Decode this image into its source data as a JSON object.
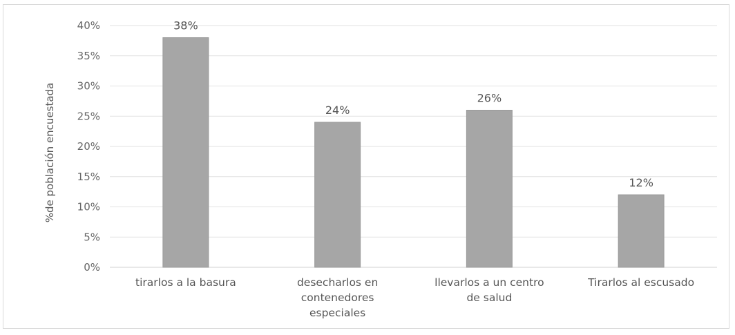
{
  "chart_data": {
    "type": "bar",
    "categories": [
      [
        "tirarlos a la basura"
      ],
      [
        "desecharlos en",
        "contenedores",
        "especiales"
      ],
      [
        "llevarlos a un centro",
        "de salud"
      ],
      [
        "Tirarlos al escusado"
      ]
    ],
    "values": [
      38,
      24,
      26,
      12
    ],
    "data_labels": [
      "38%",
      "24%",
      "26%",
      "12%"
    ],
    "ylabel": "%de población encuestada",
    "ylim": [
      0,
      40
    ],
    "yticks": [
      "0%",
      "5%",
      "10%",
      "15%",
      "20%",
      "25%",
      "30%",
      "35%",
      "40%"
    ],
    "grid": true,
    "bar_color": "#a6a6a6",
    "bar_edge_color": "#9a9a9a"
  }
}
